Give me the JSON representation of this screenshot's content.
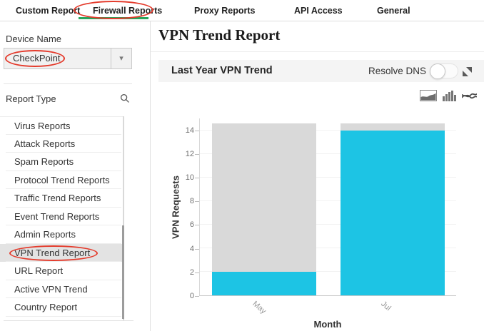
{
  "tabs": {
    "items": [
      {
        "label": "Custom Report",
        "active": false,
        "circled": false
      },
      {
        "label": "Firewall Reports",
        "active": true,
        "circled": true
      },
      {
        "label": "Proxy Reports",
        "active": false,
        "circled": false
      },
      {
        "label": "API Access",
        "active": false,
        "circled": false
      },
      {
        "label": "General",
        "active": false,
        "circled": false
      }
    ]
  },
  "sidebar": {
    "device_name_label": "Device Name",
    "device_select": {
      "value": "CheckPoint",
      "circled": true,
      "icon": "chevron-down-icon"
    },
    "report_type_label": "Report Type",
    "report_type_search_icon": "search-icon",
    "report_types": {
      "items": [
        "Virus Reports",
        "Attack Reports",
        "Spam Reports",
        "Protocol Trend Reports",
        "Traffic Trend Reports",
        "Event Trend Reports",
        "Admin Reports",
        "VPN Trend Report",
        "URL Report",
        "Active VPN Trend",
        "Country Report"
      ],
      "selected": "VPN Trend Report",
      "circled": "VPN Trend Report"
    }
  },
  "main": {
    "page_title": "VPN Trend Report",
    "panel": {
      "title": "Last Year VPN Trend",
      "resolve_dns_label": "Resolve DNS",
      "toggle_state": "off",
      "expand_icon": "expand-diagonal-icon",
      "chart_type_icons": [
        "area-chart-icon",
        "bar-chart-icon",
        "line-chart-icon"
      ]
    }
  },
  "chart_data": {
    "type": "bar",
    "title": "Last Year VPN Trend",
    "categories": [
      "May",
      "Jul"
    ],
    "series": [
      {
        "name": "VPN Requests",
        "values": [
          2,
          14
        ]
      }
    ],
    "background_bar_value": 14.6,
    "xlabel": "Month",
    "ylabel": "VPN Requests",
    "ylim": [
      0,
      15
    ],
    "yticks": [
      0,
      2,
      4,
      6,
      8,
      10,
      12,
      14
    ],
    "grid": true,
    "legend": "none",
    "bar_color": "#1dc4e4",
    "background_bar_color": "#d9d9d9"
  },
  "colors": {
    "accent_green": "#2aa45c",
    "annotation_red": "#e43b2c",
    "panel_header_bg": "#f4f4f4",
    "selected_item_bg": "#e3e3e3"
  }
}
